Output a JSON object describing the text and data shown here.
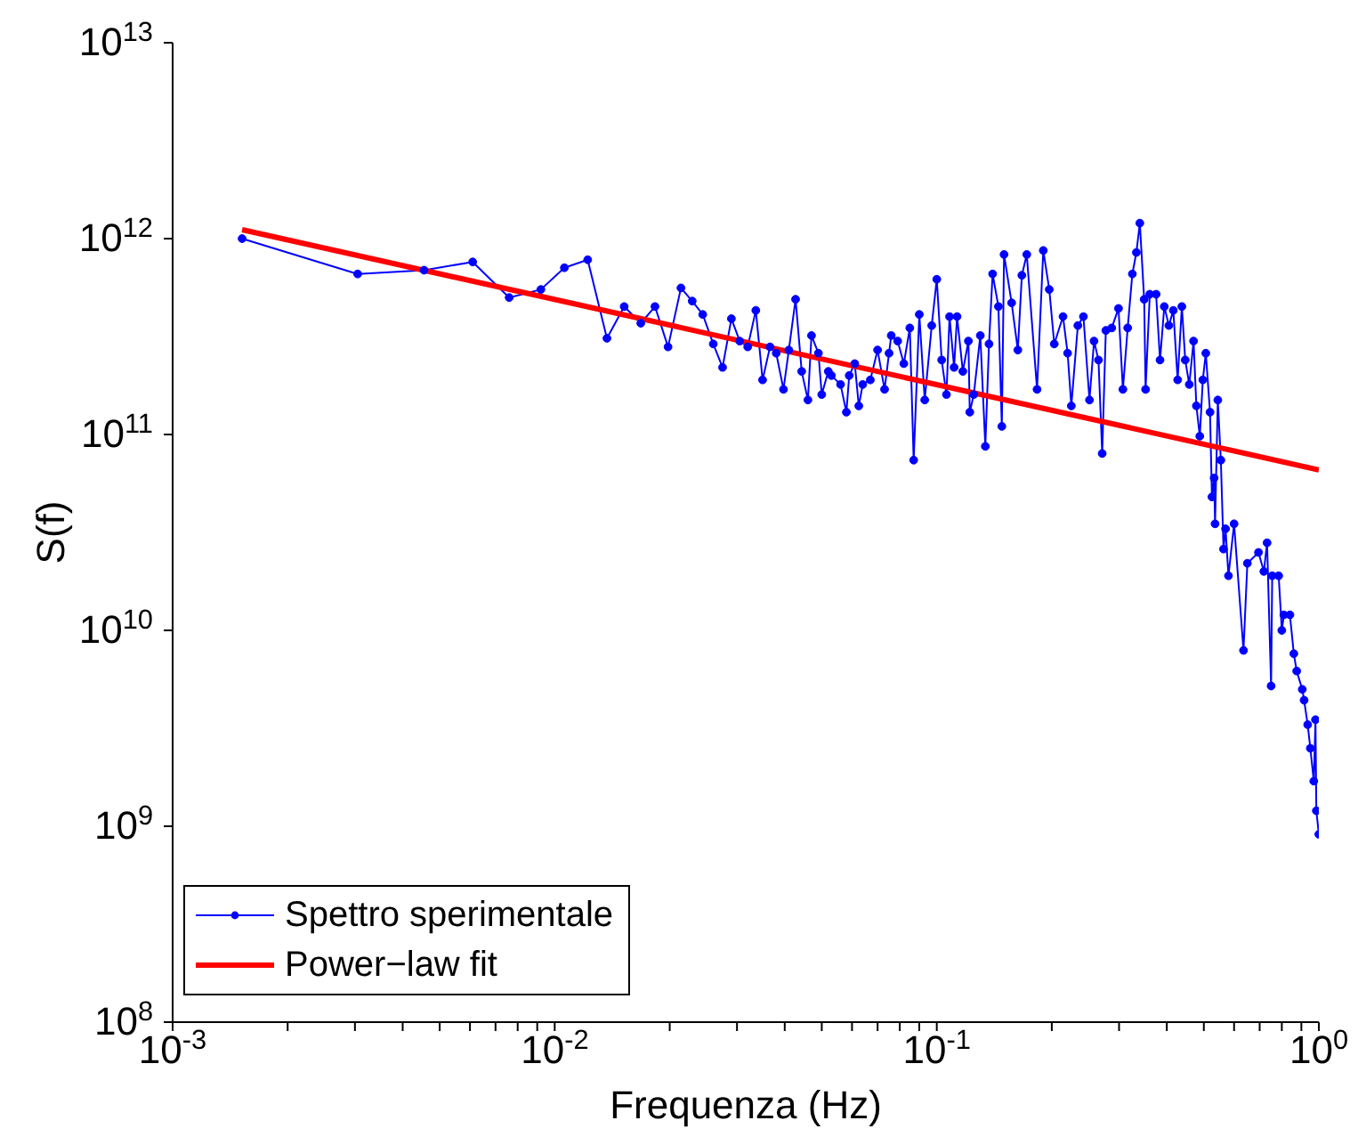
{
  "chart_data": {
    "type": "line",
    "xlabel": "Frequenza (Hz)",
    "ylabel": "S(f)",
    "log": "xy",
    "legend": "bottom left",
    "xlim": [
      0.001,
      1
    ],
    "ylim": [
      100000000.0,
      10000000000000.0
    ],
    "xticks": [
      {
        "value": 0.001,
        "label": "10$^{-3}$"
      },
      {
        "value": 0.002,
        "label": null
      },
      {
        "value": 0.003,
        "label": null
      },
      {
        "value": 0.004,
        "label": null
      },
      {
        "value": 0.005,
        "label": null
      },
      {
        "value": 0.006,
        "label": null
      },
      {
        "value": 0.007,
        "label": null
      },
      {
        "value": 0.008,
        "label": null
      },
      {
        "value": 0.009,
        "label": null
      },
      {
        "value": 0.01,
        "label": "10$^{-2}$"
      },
      {
        "value": 0.02,
        "label": null
      },
      {
        "value": 0.03,
        "label": null
      },
      {
        "value": 0.04,
        "label": null
      },
      {
        "value": 0.05,
        "label": null
      },
      {
        "value": 0.06,
        "label": null
      },
      {
        "value": 0.07,
        "label": null
      },
      {
        "value": 0.08,
        "label": null
      },
      {
        "value": 0.09,
        "label": null
      },
      {
        "value": 0.1,
        "label": "10$^{-1}$"
      },
      {
        "value": 0.2,
        "label": null
      },
      {
        "value": 0.3,
        "label": null
      },
      {
        "value": 0.4,
        "label": null
      },
      {
        "value": 0.5,
        "label": null
      },
      {
        "value": 0.6,
        "label": null
      },
      {
        "value": 0.7,
        "label": null
      },
      {
        "value": 0.8,
        "label": null
      },
      {
        "value": 0.9,
        "label": null
      },
      {
        "value": 1,
        "label": "10$^{0}$"
      }
    ],
    "yticks": [
      {
        "value": 100000000.0,
        "label": "10$^{8}$"
      },
      {
        "value": 1000000000.0,
        "label": "10$^{9}$"
      },
      {
        "value": 10000000000.0,
        "label": "10$^{10}$"
      },
      {
        "value": 100000000000.0,
        "label": "10$^{11}$"
      },
      {
        "value": 1000000000000.0,
        "label": "10$^{12}$"
      },
      {
        "value": 10000000000000.0,
        "label": "10$^{13}$"
      }
    ],
    "series": [
      {
        "name": "Spettro sperimentale",
        "color": "#0000ff",
        "marker": "circle",
        "x": [
          0.00152,
          0.00305,
          0.00455,
          0.0061,
          0.0076,
          0.0092,
          0.0106,
          0.0122,
          0.0137,
          0.0152,
          0.0168,
          0.0183,
          0.0198,
          0.0214,
          0.0229,
          0.0244,
          0.026,
          0.0275,
          0.029,
          0.0305,
          0.032,
          0.0336,
          0.035,
          0.0366,
          0.038,
          0.0397,
          0.041,
          0.0427,
          0.0443,
          0.046,
          0.047,
          0.049,
          0.05,
          0.052,
          0.053,
          0.056,
          0.058,
          0.059,
          0.061,
          0.0625,
          0.064,
          0.067,
          0.07,
          0.073,
          0.075,
          0.076,
          0.079,
          0.082,
          0.085,
          0.087,
          0.09,
          0.093,
          0.097,
          0.1,
          0.103,
          0.106,
          0.108,
          0.111,
          0.113,
          0.117,
          0.121,
          0.122,
          0.125,
          0.13,
          0.134,
          0.137,
          0.14,
          0.145,
          0.148,
          0.15,
          0.157,
          0.163,
          0.167,
          0.172,
          0.183,
          0.19,
          0.197,
          0.203,
          0.214,
          0.22,
          0.225,
          0.234,
          0.242,
          0.251,
          0.258,
          0.265,
          0.271,
          0.277,
          0.287,
          0.299,
          0.307,
          0.316,
          0.325,
          0.333,
          0.34,
          0.349,
          0.352,
          0.361,
          0.375,
          0.384,
          0.394,
          0.405,
          0.416,
          0.427,
          0.438,
          0.447,
          0.458,
          0.47,
          0.478,
          0.488,
          0.497,
          0.506,
          0.519,
          0.525,
          0.532,
          0.535,
          0.544,
          0.554,
          0.563,
          0.57,
          0.58,
          0.6,
          0.635,
          0.65,
          0.695,
          0.718,
          0.732,
          0.75,
          0.755,
          0.785,
          0.8,
          0.81,
          0.84,
          0.86,
          0.875,
          0.905,
          0.915,
          0.935,
          0.95,
          0.97,
          0.98,
          0.985,
          1.0
        ],
        "values": [
          1000000000000.0,
          660000000000.0,
          690000000000.0,
          760000000000.0,
          500000000000.0,
          550000000000.0,
          710000000000.0,
          780000000000.0,
          310000000000.0,
          450000000000.0,
          370000000000.0,
          450000000000.0,
          280000000000.0,
          560000000000.0,
          480000000000.0,
          410000000000.0,
          290000000000.0,
          220000000000.0,
          390000000000.0,
          300000000000.0,
          280000000000.0,
          430000000000.0,
          190000000000.0,
          280000000000.0,
          260000000000.0,
          170000000000.0,
          270000000000.0,
          490000000000.0,
          210000000000.0,
          150000000000.0,
          320000000000.0,
          260000000000.0,
          160000000000.0,
          210000000000.0,
          200000000000.0,
          180000000000.0,
          130000000000.0,
          200000000000.0,
          230000000000.0,
          140000000000.0,
          180000000000.0,
          190000000000.0,
          270000000000.0,
          170000000000.0,
          260000000000.0,
          320000000000.0,
          300000000000.0,
          230000000000.0,
          350000000000.0,
          74000000000.0,
          410000000000.0,
          150000000000.0,
          360000000000.0,
          620000000000.0,
          240000000000.0,
          160000000000.0,
          400000000000.0,
          220000000000.0,
          400000000000.0,
          210000000000.0,
          300000000000.0,
          130000000000.0,
          160000000000.0,
          320000000000.0,
          87000000000.0,
          290000000000.0,
          660000000000.0,
          450000000000.0,
          110000000000.0,
          830000000000.0,
          470000000000.0,
          270000000000.0,
          650000000000.0,
          830000000000.0,
          170000000000.0,
          870000000000.0,
          550000000000.0,
          290000000000.0,
          400000000000.0,
          260000000000.0,
          140000000000.0,
          360000000000.0,
          400000000000.0,
          150000000000.0,
          300000000000.0,
          240000000000.0,
          80000000000.0,
          340000000000.0,
          350000000000.0,
          440000000000.0,
          170000000000.0,
          350000000000.0,
          660000000000.0,
          850000000000.0,
          1200000000000.0,
          490000000000.0,
          170000000000.0,
          520000000000.0,
          520000000000.0,
          240000000000.0,
          450000000000.0,
          360000000000.0,
          430000000000.0,
          190000000000.0,
          450000000000.0,
          240000000000.0,
          180000000000.0,
          300000000000.0,
          140000000000.0,
          98000000000.0,
          190000000000.0,
          260000000000.0,
          130000000000.0,
          48000000000.0,
          60000000000.0,
          35000000000.0,
          150000000000.0,
          74000000000.0,
          26000000000.0,
          33000000000.0,
          19000000000.0,
          35000000000.0,
          7900000000.0,
          22000000000.0,
          25000000000.0,
          20000000000.0,
          28000000000.0,
          5200000000.0,
          19000000000.0,
          19000000000.0,
          10000000000.0,
          12000000000.0,
          12000000000.0,
          7600000000.0,
          6200000000.0,
          5000000000.0,
          4400000000.0,
          3300000000.0,
          2500000000.0,
          1700000000.0,
          3500000000.0,
          1200000000.0,
          910000000.0
        ]
      },
      {
        "name": "Power−law fit",
        "color": "#ff0000",
        "marker": "none",
        "x": [
          0.00152,
          1.0
        ],
        "values": [
          1110000000000.0,
          66000000000.0
        ]
      }
    ]
  }
}
